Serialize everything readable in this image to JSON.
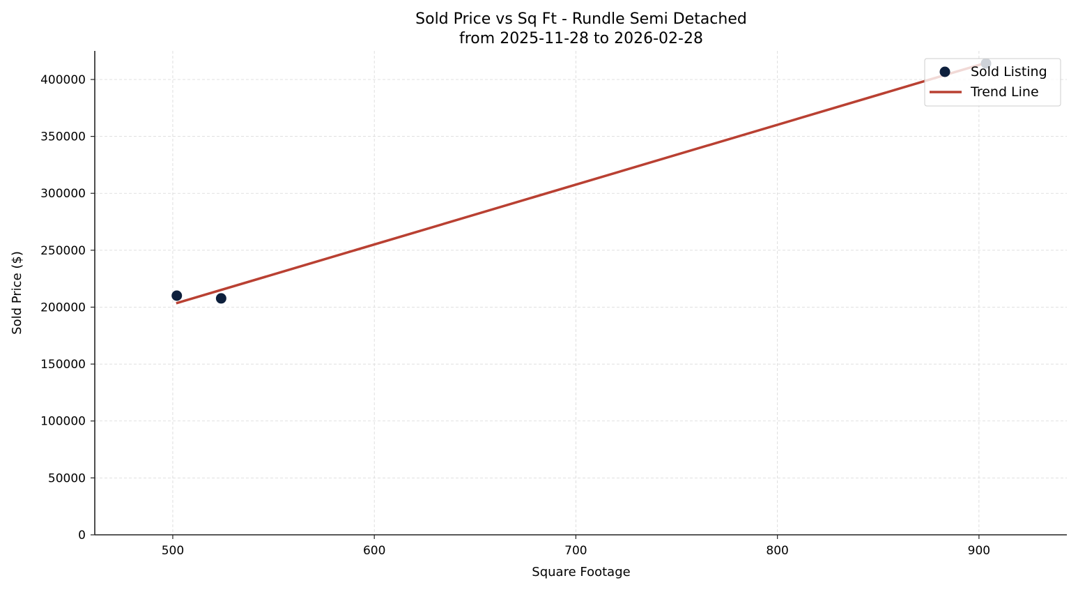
{
  "chart_data": {
    "type": "scatter",
    "title": "Sold Price vs Sq Ft - Rundle Semi Detached",
    "subtitle": "from 2025-11-28 to 2026-02-28",
    "xlabel": "Square Footage",
    "ylabel": "Sold Price ($)",
    "xlim": [
      461.3,
      943.6
    ],
    "ylim": [
      0,
      425100
    ],
    "xticks": [
      500,
      600,
      700,
      800,
      900
    ],
    "yticks": [
      0,
      50000,
      100000,
      150000,
      200000,
      250000,
      300000,
      350000,
      400000
    ],
    "grid": true,
    "legend_position": "upper right",
    "series": [
      {
        "name": "Sold Listing",
        "kind": "scatter",
        "color": "#0d1f3c",
        "points": [
          {
            "x": 502,
            "y": 210100
          },
          {
            "x": 524,
            "y": 207700
          },
          {
            "x": 903.5,
            "y": 414100
          }
        ]
      },
      {
        "name": "Trend Line",
        "kind": "line",
        "color": "#b94032",
        "points": [
          {
            "x": 501.7,
            "y": 203400
          },
          {
            "x": 903.5,
            "y": 414600
          }
        ]
      }
    ]
  },
  "legend": {
    "items": [
      {
        "label": "Sold Listing",
        "type": "marker",
        "color": "#0d1f3c"
      },
      {
        "label": "Trend Line",
        "type": "line",
        "color": "#b94032"
      }
    ]
  },
  "colors": {
    "axis": "#222222",
    "grid": "#d6d6d6",
    "legend_border": "#cccccc"
  }
}
